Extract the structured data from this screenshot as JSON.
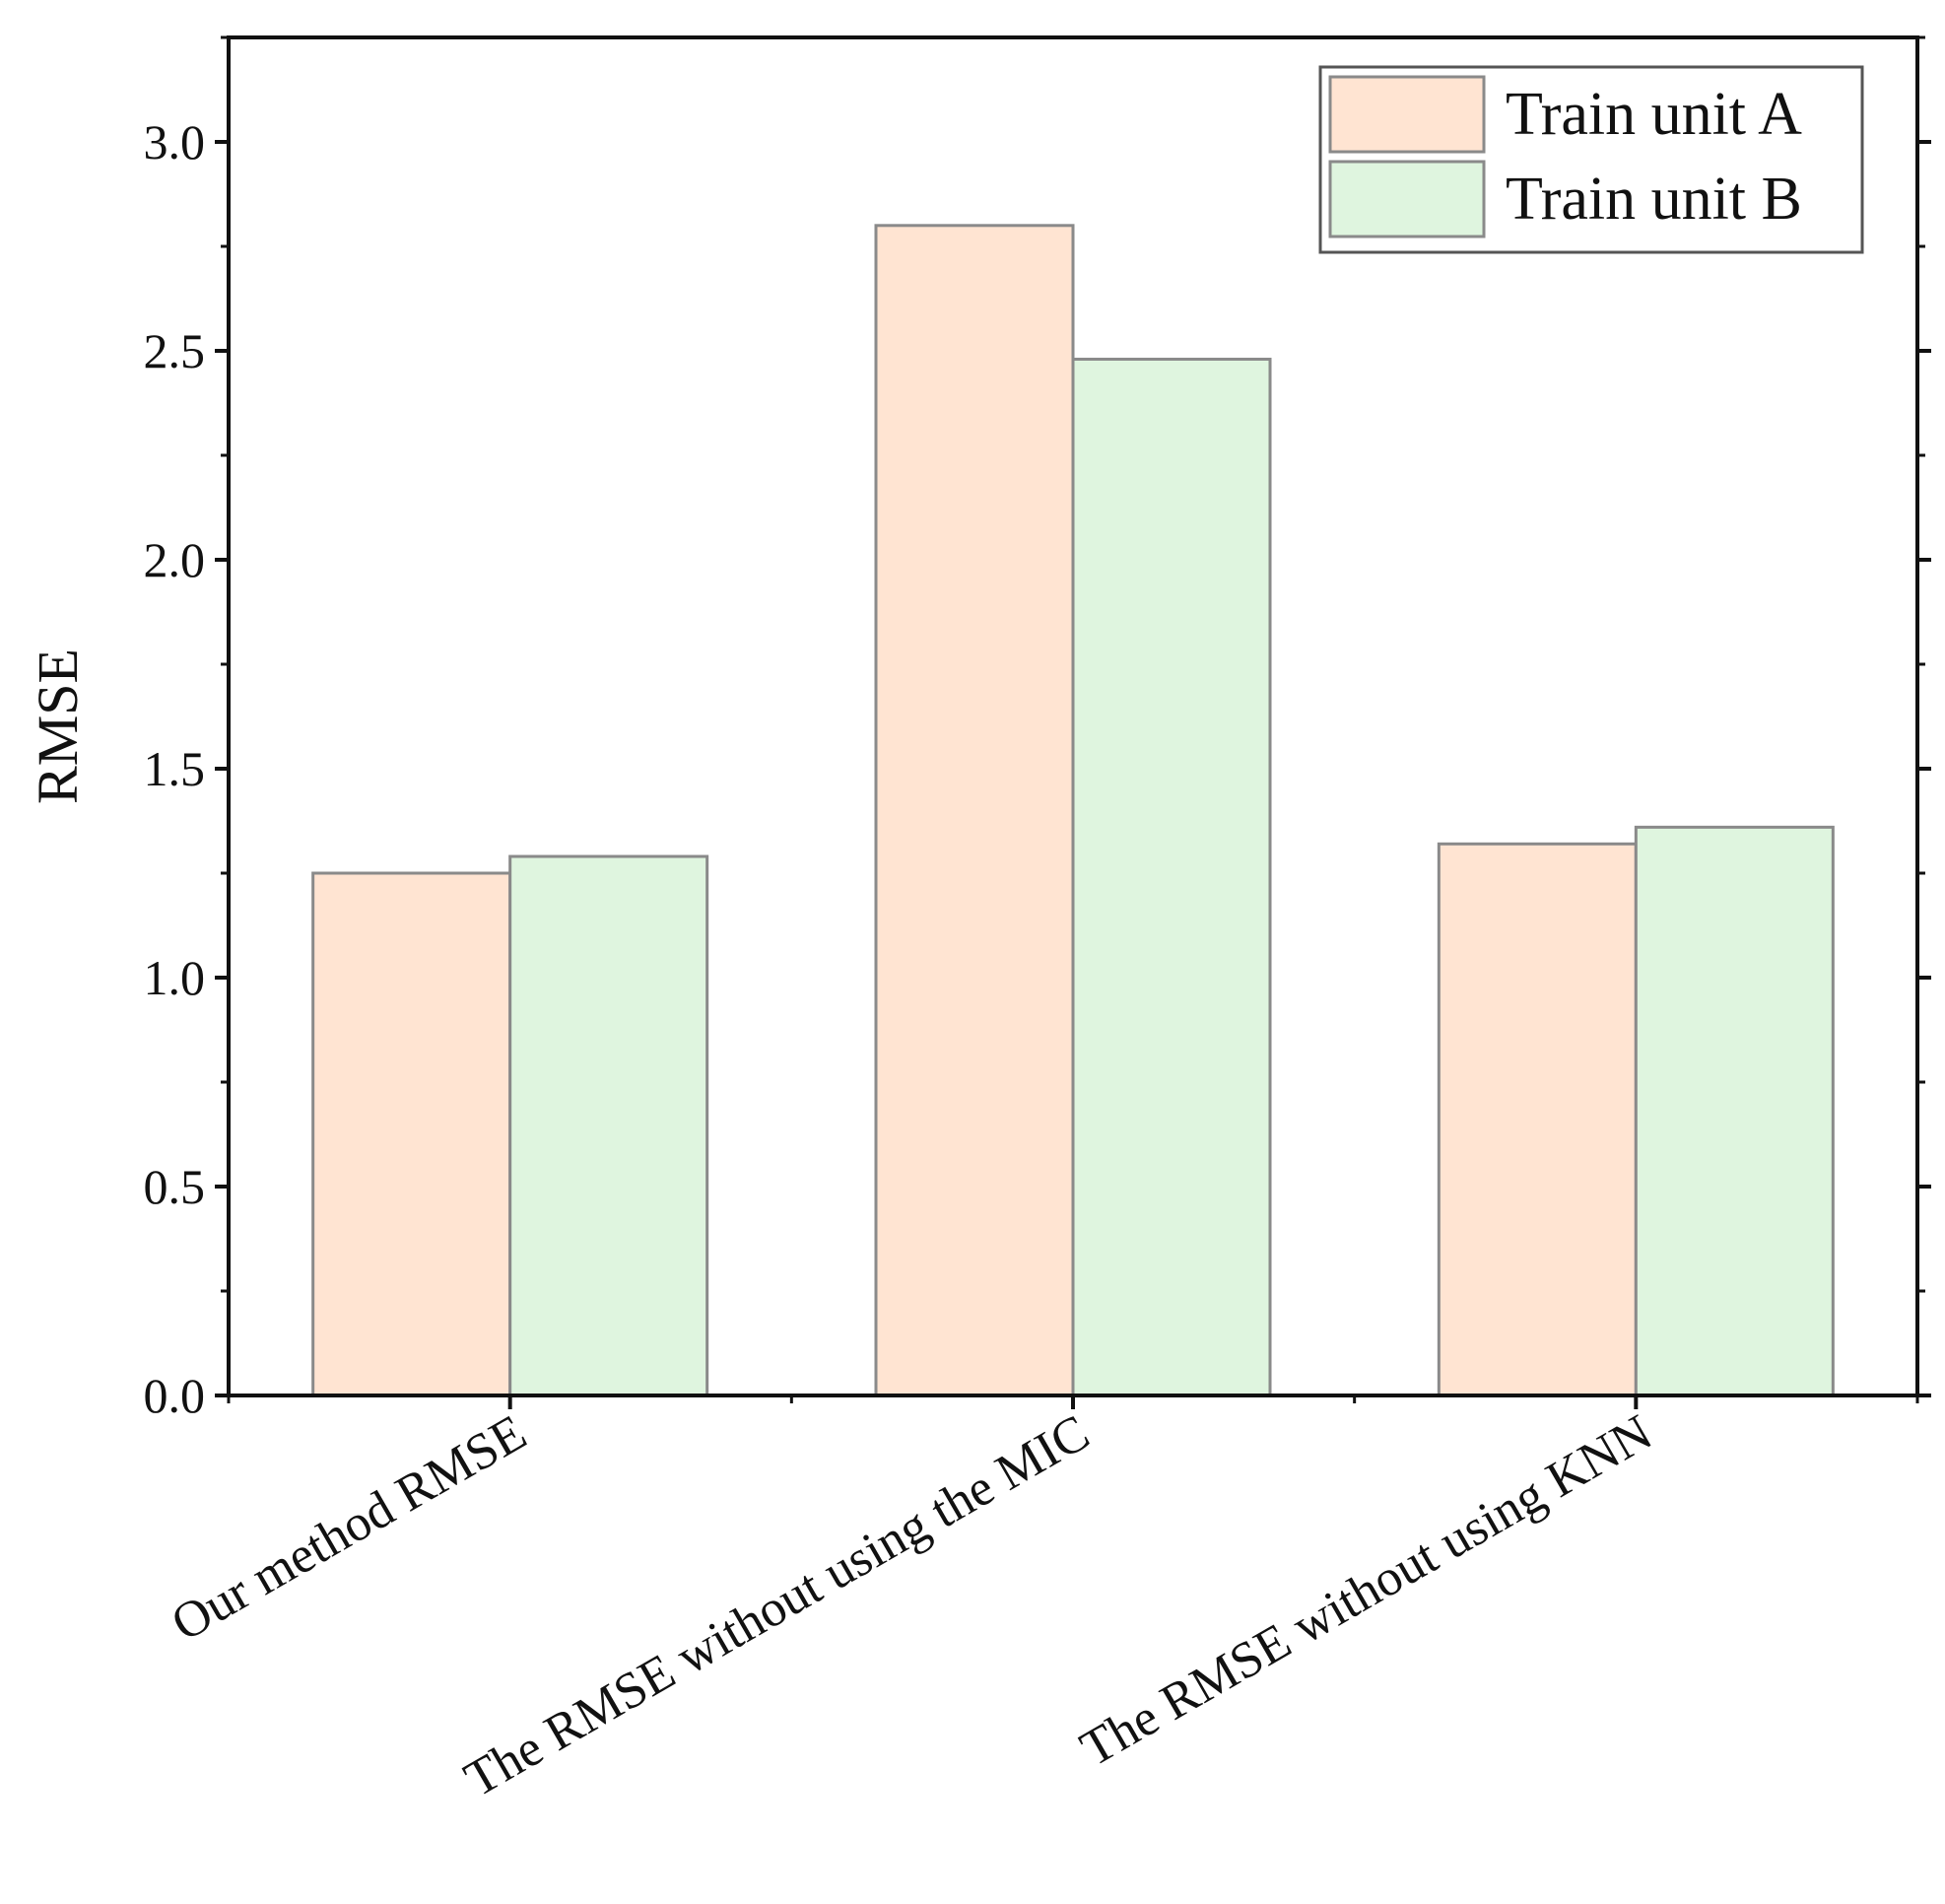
{
  "chart_data": {
    "type": "bar",
    "categories": [
      "Our method RMSE",
      "The RMSE without using the MIC",
      "The RMSE without using KNN"
    ],
    "series": [
      {
        "name": "Train unit A",
        "values": [
          1.25,
          2.8,
          1.32
        ],
        "color": "#ffe4d2"
      },
      {
        "name": "Train unit B",
        "values": [
          1.29,
          2.48,
          1.36
        ],
        "color": "#dff5df"
      }
    ],
    "title": "",
    "xlabel": "",
    "ylabel": "RMSE",
    "ylim": [
      0,
      3.25
    ],
    "yticks": [
      "0.0",
      "0.5",
      "1.0",
      "1.5",
      "2.0",
      "2.5",
      "3.0"
    ],
    "grid": false,
    "legend_position": "top-right",
    "bar_edge_color": "#8a8a8a",
    "axis_color": "#111111"
  }
}
